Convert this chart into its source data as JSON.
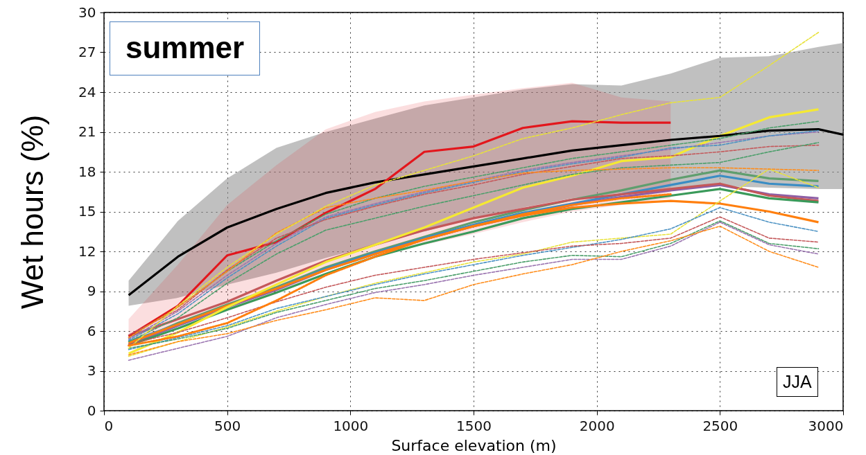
{
  "chart_data": {
    "type": "line",
    "xlabel": "Surface elevation (m)",
    "ylabel": "Wet hours (%)",
    "annotations": [
      "summer",
      "JJA"
    ],
    "x": [
      100,
      300,
      500,
      700,
      900,
      1100,
      1300,
      1500,
      1700,
      1900,
      2100,
      2300,
      2500,
      2700,
      2900
    ],
    "xlim": [
      0,
      3000
    ],
    "ylim": [
      0,
      30
    ],
    "xticks": [
      0,
      500,
      1000,
      1500,
      2000,
      2500,
      3000
    ],
    "yticks": [
      0,
      3,
      6,
      9,
      12,
      15,
      18,
      21,
      24,
      27,
      30
    ],
    "grid": true,
    "series": [
      {
        "color": "#e8e23a",
        "line_style": "dashed",
        "values": [
          4.1,
          5.2,
          6.3,
          7.5,
          8.6,
          9.6,
          10.4,
          11.2,
          11.8,
          12.7,
          13.0,
          13.3,
          15.8,
          18.2,
          16.8
        ]
      },
      {
        "color": "#4c92c3",
        "line_style": "dashed",
        "values": [
          4.6,
          5.5,
          6.4,
          7.7,
          8.6,
          9.5,
          10.3,
          11.0,
          11.7,
          12.3,
          12.9,
          13.7,
          15.3,
          14.2,
          13.5
        ]
      },
      {
        "color": "#c4585a",
        "line_style": "dashed",
        "values": [
          5.0,
          5.9,
          7.0,
          8.2,
          9.3,
          10.2,
          10.8,
          11.4,
          11.9,
          12.4,
          12.6,
          13.0,
          14.6,
          13.0,
          12.7
        ]
      },
      {
        "color": "#4a9e6a",
        "line_style": "dashed",
        "values": [
          4.7,
          5.4,
          6.2,
          7.4,
          8.3,
          9.2,
          9.8,
          10.5,
          11.2,
          11.7,
          11.6,
          12.6,
          14.3,
          12.6,
          12.2
        ]
      },
      {
        "color": "#9a74b0",
        "line_style": "dashed",
        "values": [
          3.8,
          4.7,
          5.6,
          7.0,
          8.0,
          8.9,
          9.5,
          10.2,
          10.8,
          11.4,
          11.4,
          12.4,
          14.2,
          12.5,
          11.8
        ]
      },
      {
        "color": "#ff8c1a",
        "line_style": "dashed",
        "values": [
          4.2,
          5.2,
          5.8,
          6.8,
          7.6,
          8.5,
          8.3,
          9.5,
          10.3,
          11.0,
          12.0,
          12.8,
          13.9,
          12.0,
          10.8
        ]
      },
      {
        "color": "#4a9e6a",
        "line_style": "dashed",
        "values": [
          5.5,
          7.8,
          10.5,
          12.8,
          14.8,
          16.0,
          16.9,
          17.6,
          18.3,
          19.0,
          19.5,
          20.0,
          20.5,
          21.3,
          21.8
        ]
      },
      {
        "color": "#9a74b0",
        "line_style": "dashed",
        "values": [
          5.4,
          7.5,
          10.2,
          12.6,
          14.6,
          15.6,
          16.5,
          17.3,
          18.1,
          18.7,
          19.2,
          19.7,
          20.2,
          20.7,
          21.0
        ]
      },
      {
        "color": "#4c92c3",
        "line_style": "dashed",
        "values": [
          5.3,
          7.3,
          10.0,
          12.4,
          14.5,
          15.5,
          16.4,
          17.2,
          18.0,
          18.6,
          19.1,
          19.8,
          20.0,
          20.7,
          21.1
        ]
      },
      {
        "color": "#c4585a",
        "line_style": "dashed",
        "values": [
          5.7,
          7.6,
          10.6,
          13.0,
          14.4,
          15.4,
          16.3,
          17.0,
          17.8,
          18.4,
          19.0,
          19.2,
          19.5,
          19.9,
          20.0
        ]
      },
      {
        "color": "#4a9e6a",
        "line_style": "dashed",
        "values": [
          5.2,
          7.0,
          9.6,
          11.8,
          13.6,
          14.5,
          15.4,
          16.2,
          17.0,
          17.8,
          18.3,
          18.5,
          18.7,
          19.5,
          20.2
        ]
      },
      {
        "color": "#ff8c1a",
        "line_style": "dashed",
        "values": [
          5.5,
          7.8,
          10.5,
          13.4,
          15.3,
          16.0,
          16.6,
          17.3,
          17.9,
          18.1,
          18.2,
          18.3,
          18.3,
          18.2,
          18.1
        ]
      },
      {
        "color": "#e8e23a",
        "line_style": "dashed",
        "values": [
          4.7,
          7.9,
          10.8,
          13.3,
          15.4,
          17.0,
          18.1,
          19.2,
          20.5,
          21.3,
          22.3,
          23.2,
          23.6,
          26.0,
          28.5
        ]
      },
      {
        "color": "#ff7f0e",
        "line_style": "dotted",
        "x": [
          100,
          300,
          500,
          700,
          900,
          1100,
          1300,
          1500,
          1700,
          1900,
          2100,
          2300
        ],
        "values": [
          4.9,
          5.6,
          6.6,
          8.3,
          10.2,
          11.6,
          12.9,
          13.9,
          14.8,
          15.5,
          16.0,
          16.3
        ]
      },
      {
        "color": "#5f9e6e",
        "values": [
          5.0,
          6.6,
          8.0,
          9.3,
          10.8,
          12.0,
          13.1,
          14.2,
          15.1,
          15.9,
          16.6,
          17.4,
          18.1,
          17.5,
          17.3
        ]
      },
      {
        "color": "#3a8dc4",
        "values": [
          5.2,
          6.5,
          7.9,
          9.2,
          10.7,
          11.9,
          13.0,
          14.0,
          14.9,
          15.6,
          16.3,
          17.0,
          17.7,
          17.1,
          16.9
        ]
      },
      {
        "color": "#8e5fa6",
        "values": [
          5.0,
          6.4,
          7.8,
          9.1,
          10.6,
          11.8,
          12.9,
          13.9,
          14.7,
          15.5,
          16.1,
          16.6,
          17.0,
          16.3,
          16.0
        ]
      },
      {
        "color": "#c4585a",
        "values": [
          5.6,
          6.9,
          8.2,
          9.8,
          11.3,
          12.5,
          13.6,
          14.5,
          15.2,
          15.9,
          16.3,
          16.7,
          17.1,
          16.2,
          15.8
        ]
      },
      {
        "color": "#3a9a5a",
        "values": [
          4.9,
          6.2,
          7.6,
          8.9,
          10.3,
          11.6,
          12.6,
          13.5,
          14.5,
          15.2,
          15.7,
          16.2,
          16.7,
          16.0,
          15.7
        ]
      },
      {
        "color": "#ff7f0e",
        "values": [
          5.1,
          6.5,
          7.9,
          9.2,
          10.6,
          11.8,
          12.9,
          13.9,
          14.7,
          15.3,
          15.6,
          15.8,
          15.6,
          15.0,
          14.2
        ]
      },
      {
        "color": "#f5e932",
        "values": [
          4.3,
          5.9,
          7.8,
          9.5,
          11.2,
          12.5,
          13.8,
          15.3,
          16.8,
          17.7,
          18.8,
          19.1,
          20.7,
          22.1,
          22.7
        ]
      },
      {
        "color": "#000000",
        "x": [
          100,
          300,
          500,
          700,
          900,
          1100,
          1300,
          1500,
          1700,
          1900,
          2100,
          2300,
          2500,
          2700,
          2900,
          3000
        ],
        "values": [
          8.7,
          11.6,
          13.8,
          15.2,
          16.4,
          17.2,
          17.8,
          18.4,
          19.0,
          19.6,
          20.0,
          20.4,
          20.7,
          21.1,
          21.2,
          20.8
        ],
        "lower": [
          7.9,
          8.5,
          9.5,
          10.4,
          11.5,
          12.5,
          13.5,
          14.5,
          15.3,
          16.0,
          16.4,
          16.6,
          16.9,
          16.8,
          16.7,
          16.7
        ],
        "upper": [
          9.8,
          14.3,
          17.5,
          19.8,
          21.0,
          22.0,
          23.0,
          23.6,
          24.2,
          24.6,
          24.5,
          25.4,
          26.6,
          26.7,
          27.4,
          27.7
        ]
      },
      {
        "color": "#e3161c",
        "x": [
          100,
          300,
          500,
          700,
          900,
          1100,
          1300,
          1500,
          1700,
          1900,
          2100,
          2300
        ],
        "values": [
          5.6,
          7.9,
          11.7,
          12.7,
          14.9,
          16.7,
          19.5,
          19.9,
          21.3,
          21.8,
          21.7,
          21.7
        ],
        "lower": [
          5.0,
          6.5,
          7.5,
          8.8,
          10.5,
          11.8,
          12.5,
          13.3,
          14.2,
          15.0,
          15.5,
          16.0
        ],
        "upper": [
          6.9,
          11.0,
          15.5,
          18.5,
          21.2,
          22.5,
          23.3,
          23.8,
          24.3,
          24.7,
          23.6,
          23.3
        ]
      }
    ]
  }
}
